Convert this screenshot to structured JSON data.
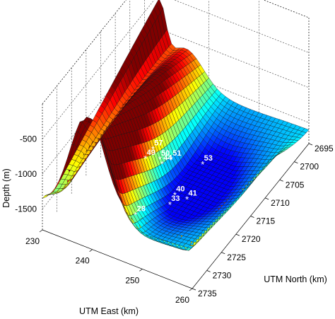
{
  "chart_data": {
    "type": "surface",
    "title": "",
    "xlabel": "UTM East (km)",
    "ylabel": "UTM North (km)",
    "zlabel": "Depth (m)",
    "xlim": [
      230,
      260
    ],
    "ylim": [
      2695,
      2735
    ],
    "zlim": [
      -1800,
      0
    ],
    "x_ticks": [
      "230",
      "240",
      "250",
      "260"
    ],
    "y_ticks": [
      "2695",
      "2700",
      "2705",
      "2710",
      "2715",
      "2720",
      "2725",
      "2730",
      "2735"
    ],
    "z_ticks": [
      "-500",
      "-1000",
      "-1500"
    ],
    "grid": true,
    "colormap": "jet",
    "stations": [
      {
        "label": "28",
        "x": 245.5,
        "y": 2729.6,
        "z": -1390
      },
      {
        "label": "49",
        "x": 241.0,
        "y": 2718.5,
        "z": -1285
      },
      {
        "label": "57",
        "x": 241.1,
        "y": 2716.1,
        "z": -1270
      },
      {
        "label": "50",
        "x": 242.9,
        "y": 2716.8,
        "z": -1330
      },
      {
        "label": "44",
        "x": 243.7,
        "y": 2717.4,
        "z": -1345
      },
      {
        "label": "51",
        "x": 244.6,
        "y": 2715.8,
        "z": -1335
      },
      {
        "label": "33",
        "x": 249.4,
        "y": 2724.5,
        "z": -1395
      },
      {
        "label": "40",
        "x": 249.1,
        "y": 2722.3,
        "z": -1385
      },
      {
        "label": "41",
        "x": 251.6,
        "y": 2722.4,
        "z": -1370
      },
      {
        "label": "53",
        "x": 249.6,
        "y": 2713.6,
        "z": -1380
      }
    ]
  }
}
